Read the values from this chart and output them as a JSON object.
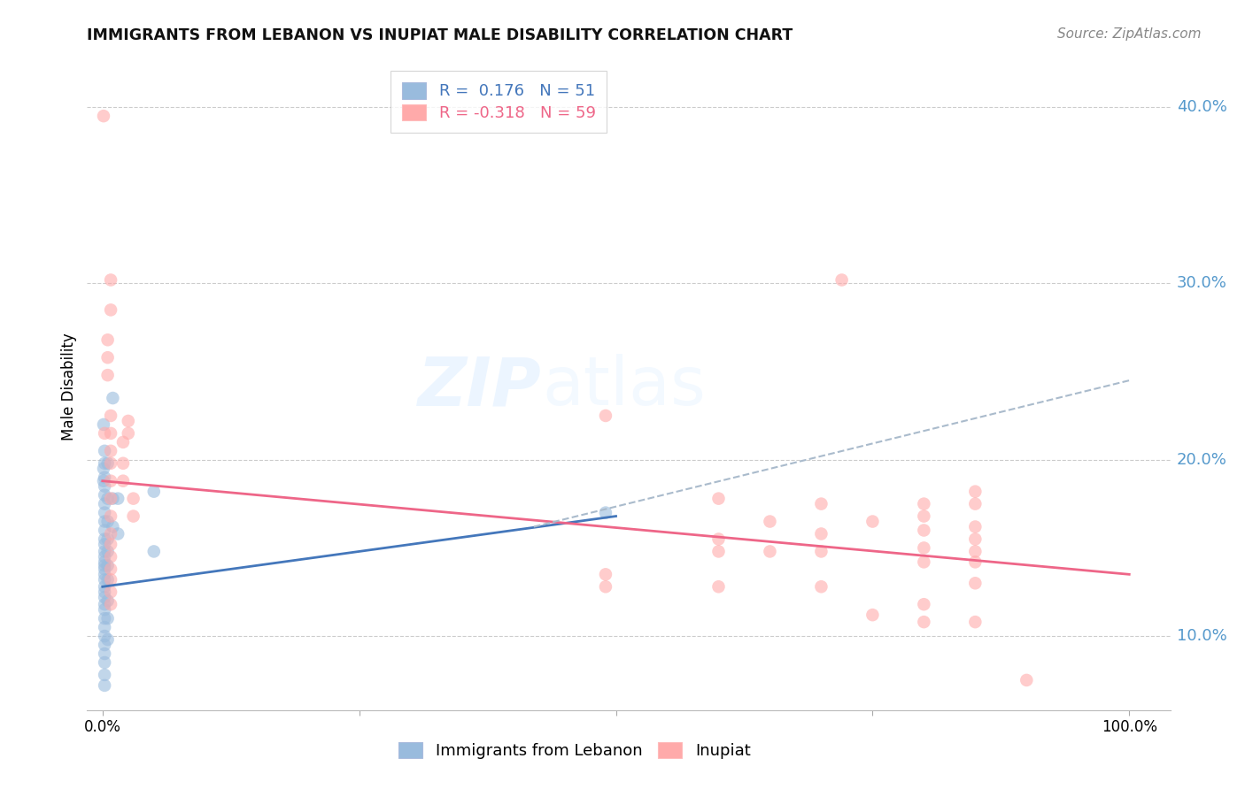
{
  "title": "IMMIGRANTS FROM LEBANON VS INUPIAT MALE DISABILITY CORRELATION CHART",
  "source": "Source: ZipAtlas.com",
  "ylabel": "Male Disability",
  "y_ticks": [
    0.1,
    0.2,
    0.3,
    0.4
  ],
  "y_tick_labels": [
    "10.0%",
    "20.0%",
    "30.0%",
    "40.0%"
  ],
  "watermark_zip": "ZIP",
  "watermark_atlas": "atlas",
  "blue_color": "#99BBDD",
  "pink_color": "#FFAAAA",
  "blue_line_color": "#4477BB",
  "pink_line_color": "#EE6688",
  "blue_scatter": [
    [
      0.001,
      0.22
    ],
    [
      0.001,
      0.195
    ],
    [
      0.001,
      0.188
    ],
    [
      0.002,
      0.205
    ],
    [
      0.002,
      0.198
    ],
    [
      0.002,
      0.19
    ],
    [
      0.002,
      0.185
    ],
    [
      0.002,
      0.18
    ],
    [
      0.002,
      0.175
    ],
    [
      0.002,
      0.17
    ],
    [
      0.002,
      0.165
    ],
    [
      0.002,
      0.16
    ],
    [
      0.002,
      0.155
    ],
    [
      0.002,
      0.152
    ],
    [
      0.002,
      0.148
    ],
    [
      0.002,
      0.145
    ],
    [
      0.002,
      0.142
    ],
    [
      0.002,
      0.14
    ],
    [
      0.002,
      0.138
    ],
    [
      0.002,
      0.135
    ],
    [
      0.002,
      0.132
    ],
    [
      0.002,
      0.128
    ],
    [
      0.002,
      0.125
    ],
    [
      0.002,
      0.122
    ],
    [
      0.002,
      0.118
    ],
    [
      0.002,
      0.115
    ],
    [
      0.002,
      0.11
    ],
    [
      0.002,
      0.105
    ],
    [
      0.002,
      0.1
    ],
    [
      0.002,
      0.095
    ],
    [
      0.002,
      0.09
    ],
    [
      0.002,
      0.085
    ],
    [
      0.002,
      0.078
    ],
    [
      0.002,
      0.072
    ],
    [
      0.005,
      0.198
    ],
    [
      0.005,
      0.178
    ],
    [
      0.005,
      0.165
    ],
    [
      0.005,
      0.155
    ],
    [
      0.005,
      0.148
    ],
    [
      0.005,
      0.14
    ],
    [
      0.005,
      0.132
    ],
    [
      0.005,
      0.12
    ],
    [
      0.005,
      0.11
    ],
    [
      0.005,
      0.098
    ],
    [
      0.01,
      0.235
    ],
    [
      0.01,
      0.178
    ],
    [
      0.01,
      0.162
    ],
    [
      0.015,
      0.178
    ],
    [
      0.015,
      0.158
    ],
    [
      0.05,
      0.182
    ],
    [
      0.05,
      0.148
    ],
    [
      0.49,
      0.17
    ]
  ],
  "pink_scatter": [
    [
      0.001,
      0.395
    ],
    [
      0.002,
      0.215
    ],
    [
      0.005,
      0.268
    ],
    [
      0.005,
      0.258
    ],
    [
      0.005,
      0.248
    ],
    [
      0.008,
      0.302
    ],
    [
      0.008,
      0.285
    ],
    [
      0.008,
      0.225
    ],
    [
      0.008,
      0.215
    ],
    [
      0.008,
      0.205
    ],
    [
      0.008,
      0.198
    ],
    [
      0.008,
      0.188
    ],
    [
      0.008,
      0.178
    ],
    [
      0.008,
      0.168
    ],
    [
      0.008,
      0.158
    ],
    [
      0.008,
      0.152
    ],
    [
      0.008,
      0.145
    ],
    [
      0.008,
      0.138
    ],
    [
      0.008,
      0.132
    ],
    [
      0.008,
      0.125
    ],
    [
      0.008,
      0.118
    ],
    [
      0.02,
      0.21
    ],
    [
      0.02,
      0.198
    ],
    [
      0.02,
      0.188
    ],
    [
      0.025,
      0.222
    ],
    [
      0.025,
      0.215
    ],
    [
      0.03,
      0.178
    ],
    [
      0.03,
      0.168
    ],
    [
      0.49,
      0.225
    ],
    [
      0.49,
      0.135
    ],
    [
      0.49,
      0.128
    ],
    [
      0.6,
      0.178
    ],
    [
      0.6,
      0.155
    ],
    [
      0.6,
      0.148
    ],
    [
      0.6,
      0.128
    ],
    [
      0.65,
      0.165
    ],
    [
      0.65,
      0.148
    ],
    [
      0.7,
      0.175
    ],
    [
      0.7,
      0.158
    ],
    [
      0.7,
      0.148
    ],
    [
      0.7,
      0.128
    ],
    [
      0.72,
      0.302
    ],
    [
      0.75,
      0.165
    ],
    [
      0.75,
      0.112
    ],
    [
      0.8,
      0.175
    ],
    [
      0.8,
      0.168
    ],
    [
      0.8,
      0.16
    ],
    [
      0.8,
      0.15
    ],
    [
      0.8,
      0.142
    ],
    [
      0.8,
      0.118
    ],
    [
      0.8,
      0.108
    ],
    [
      0.85,
      0.182
    ],
    [
      0.85,
      0.175
    ],
    [
      0.85,
      0.162
    ],
    [
      0.85,
      0.155
    ],
    [
      0.85,
      0.148
    ],
    [
      0.85,
      0.142
    ],
    [
      0.85,
      0.13
    ],
    [
      0.85,
      0.108
    ],
    [
      0.9,
      0.075
    ]
  ],
  "blue_line": [
    [
      0.0,
      0.128
    ],
    [
      0.5,
      0.168
    ]
  ],
  "pink_line": [
    [
      0.0,
      0.188
    ],
    [
      1.0,
      0.135
    ]
  ],
  "dashed_line": [
    [
      0.42,
      0.162
    ],
    [
      1.0,
      0.245
    ]
  ],
  "ylim": [
    0.058,
    0.425
  ],
  "xlim": [
    -0.015,
    1.04
  ]
}
